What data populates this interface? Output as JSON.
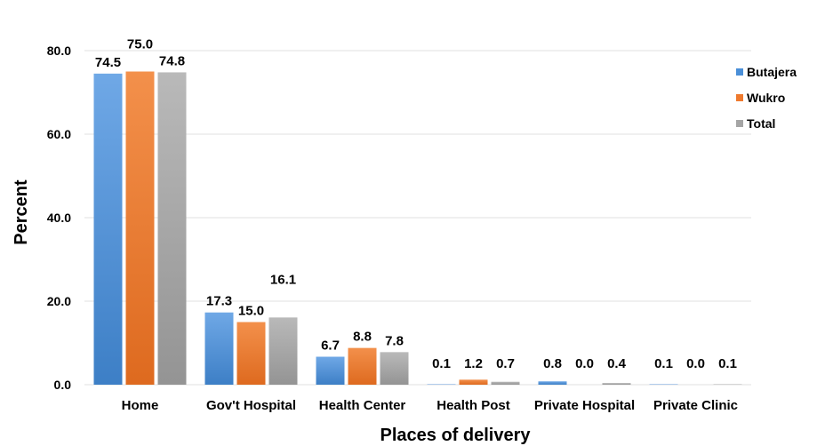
{
  "chart_data": {
    "type": "bar",
    "title": "",
    "xlabel": "Places of delivery",
    "ylabel": "Percent",
    "ylim": [
      0,
      80
    ],
    "yticks": [
      "0.0",
      "20.0",
      "40.0",
      "60.0",
      "80.0"
    ],
    "grid": true,
    "legend_position": "right",
    "categories": [
      "Home",
      "Gov't Hospital",
      "Health Center",
      "Health Post",
      "Private Hospital",
      "Private Clinic"
    ],
    "series": [
      {
        "name": "Butajera",
        "color": "#4a8fd8",
        "values": [
          74.5,
          17.3,
          6.7,
          0.1,
          0.8,
          0.1
        ],
        "labels": [
          "74.5",
          "17.3",
          "6.7",
          "0.1",
          "0.8",
          "0.1"
        ]
      },
      {
        "name": "Wukro",
        "color": "#ef7a2e",
        "values": [
          75.0,
          15.0,
          8.8,
          1.2,
          0.0,
          0.0
        ],
        "labels": [
          "75.0",
          "15.0",
          "8.8",
          "1.2",
          "0.0",
          "0.0"
        ]
      },
      {
        "name": "Total",
        "color": "#a5a5a5",
        "values": [
          74.8,
          16.1,
          7.8,
          0.7,
          0.4,
          0.1
        ],
        "labels": [
          "74.8",
          "16.1",
          "7.8",
          "0.7",
          "0.4",
          "0.1"
        ]
      }
    ]
  }
}
